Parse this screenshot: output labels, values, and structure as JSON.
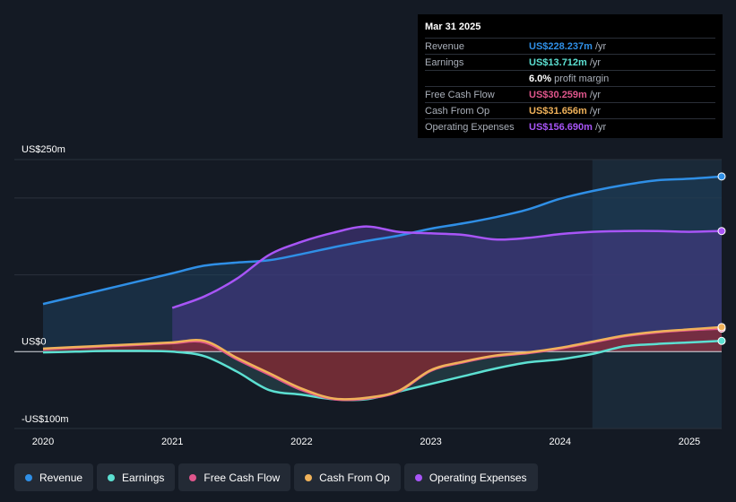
{
  "tooltip": {
    "date": "Mar 31 2025",
    "rows": [
      {
        "label": "Revenue",
        "value": "US$228.237m",
        "unit": "/yr",
        "color": "#2f8fe6"
      },
      {
        "label": "Earnings",
        "value": "US$13.712m",
        "unit": "/yr",
        "color": "#5ce0d2"
      },
      {
        "label": "",
        "value": "6.0%",
        "unit": "profit margin",
        "color": "#ffffff"
      },
      {
        "label": "Free Cash Flow",
        "value": "US$30.259m",
        "unit": "/yr",
        "color": "#e0568c"
      },
      {
        "label": "Cash From Op",
        "value": "US$31.656m",
        "unit": "/yr",
        "color": "#f0b25a"
      },
      {
        "label": "Operating Expenses",
        "value": "US$156.690m",
        "unit": "/yr",
        "color": "#a855f7"
      }
    ]
  },
  "legend": [
    {
      "label": "Revenue",
      "color": "#2f8fe6"
    },
    {
      "label": "Earnings",
      "color": "#5ce0d2"
    },
    {
      "label": "Free Cash Flow",
      "color": "#e0568c"
    },
    {
      "label": "Cash From Op",
      "color": "#f0b25a"
    },
    {
      "label": "Operating Expenses",
      "color": "#a855f7"
    }
  ],
  "chart_data": {
    "type": "line",
    "title": "",
    "y_unit_labels": [
      {
        "label": "US$250m",
        "value": 250
      },
      {
        "label": "US$0",
        "value": 0
      },
      {
        "label": "-US$100m",
        "value": -100
      }
    ],
    "ylim": [
      -100,
      250
    ],
    "xlim": [
      2020.0,
      2025.25
    ],
    "x_ticks": [
      {
        "label": "2020",
        "value": 2020
      },
      {
        "label": "2021",
        "value": 2021
      },
      {
        "label": "2022",
        "value": 2022
      },
      {
        "label": "2023",
        "value": 2023
      },
      {
        "label": "2024",
        "value": 2024
      },
      {
        "label": "2025",
        "value": 2025
      }
    ],
    "forecast_start": 2024.25,
    "series": [
      {
        "name": "Revenue",
        "color": "#2f8fe6",
        "fill": true,
        "x": [
          2020.0,
          2020.25,
          2020.5,
          2020.75,
          2021.0,
          2021.25,
          2021.5,
          2021.75,
          2022.0,
          2022.25,
          2022.5,
          2022.75,
          2023.0,
          2023.25,
          2023.5,
          2023.75,
          2024.0,
          2024.25,
          2024.5,
          2024.75,
          2025.0,
          2025.25
        ],
        "y": [
          62,
          72,
          82,
          92,
          102,
          112,
          116,
          119,
          127,
          136,
          144,
          151,
          160,
          167,
          175,
          185,
          199,
          209,
          217,
          223,
          225,
          228
        ]
      },
      {
        "name": "Operating Expenses",
        "color": "#a855f7",
        "fill": true,
        "x": [
          2021.0,
          2021.25,
          2021.5,
          2021.75,
          2022.0,
          2022.25,
          2022.5,
          2022.75,
          2023.0,
          2023.25,
          2023.5,
          2023.75,
          2024.0,
          2024.25,
          2024.5,
          2024.75,
          2025.0,
          2025.25
        ],
        "y": [
          57,
          72,
          95,
          126,
          143,
          155,
          163,
          156,
          154,
          152,
          146,
          148,
          153,
          156,
          157,
          157,
          156,
          157
        ]
      },
      {
        "name": "Earnings",
        "color": "#5ce0d2",
        "fill": true,
        "x": [
          2020.0,
          2020.25,
          2020.5,
          2020.75,
          2021.0,
          2021.25,
          2021.5,
          2021.75,
          2022.0,
          2022.25,
          2022.5,
          2022.75,
          2023.0,
          2023.25,
          2023.5,
          2023.75,
          2024.0,
          2024.25,
          2024.5,
          2024.75,
          2025.0,
          2025.25
        ],
        "y": [
          -1,
          0,
          1,
          1,
          0,
          -6,
          -26,
          -50,
          -56,
          -62,
          -62,
          -52,
          -42,
          -32,
          -22,
          -14,
          -10,
          -3,
          7,
          10,
          12,
          14
        ]
      },
      {
        "name": "Free Cash Flow",
        "color": "#e0568c",
        "fill": true,
        "x": [
          2020.0,
          2020.25,
          2020.5,
          2020.75,
          2021.0,
          2021.25,
          2021.5,
          2021.75,
          2022.0,
          2022.25,
          2022.5,
          2022.75,
          2023.0,
          2023.25,
          2023.5,
          2023.75,
          2024.0,
          2024.25,
          2024.5,
          2024.75,
          2025.0,
          2025.25
        ],
        "y": [
          3,
          5,
          7,
          9,
          11,
          12,
          -10,
          -30,
          -50,
          -62,
          -61,
          -52,
          -25,
          -14,
          -6,
          -2,
          4,
          12,
          20,
          25,
          28,
          30
        ]
      },
      {
        "name": "Cash From Op",
        "color": "#f0b25a",
        "fill": false,
        "x": [
          2020.0,
          2020.25,
          2020.5,
          2020.75,
          2021.0,
          2021.25,
          2021.5,
          2021.75,
          2022.0,
          2022.25,
          2022.5,
          2022.75,
          2023.0,
          2023.25,
          2023.5,
          2023.75,
          2024.0,
          2024.25,
          2024.5,
          2024.75,
          2025.0,
          2025.25
        ],
        "y": [
          4,
          6,
          8,
          10,
          12,
          14,
          -8,
          -28,
          -48,
          -61,
          -60,
          -51,
          -24,
          -13,
          -5,
          -1,
          5,
          13,
          21,
          26,
          29,
          32
        ]
      }
    ]
  }
}
